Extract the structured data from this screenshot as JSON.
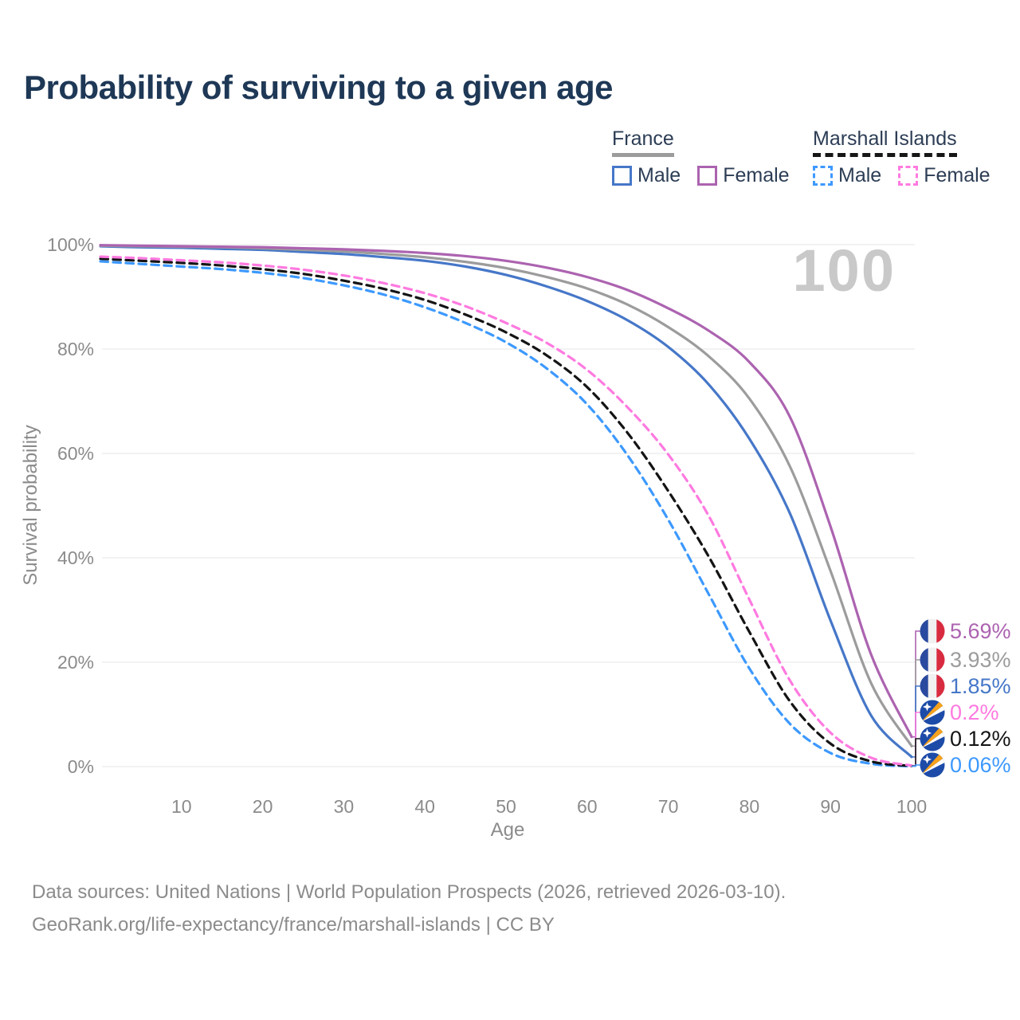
{
  "title": "Probability of surviving to a given age",
  "legend": {
    "groups": [
      {
        "label": "France",
        "line": "solid",
        "items": [
          {
            "label": "Male",
            "color": "#4677c8"
          },
          {
            "label": "Female",
            "color": "#ac63b0"
          }
        ]
      },
      {
        "label": "Marshall Islands",
        "line": "dashed",
        "items": [
          {
            "label": "Male",
            "color": "#3d99ff"
          },
          {
            "label": "Female",
            "color": "#ff7ae0"
          }
        ]
      }
    ]
  },
  "chart_data": {
    "type": "line",
    "x_label": "Age",
    "y_label": "Survival probability",
    "watermark": "100",
    "xlim": [
      0,
      100
    ],
    "ylim": [
      0,
      100
    ],
    "grid": true,
    "x_ticks": [
      10,
      20,
      30,
      40,
      50,
      60,
      70,
      80,
      90,
      100
    ],
    "y_ticks": [
      {
        "value": 0,
        "label": "0%"
      },
      {
        "value": 20,
        "label": "20%"
      },
      {
        "value": 40,
        "label": "40%"
      },
      {
        "value": 60,
        "label": "60%"
      },
      {
        "value": 80,
        "label": "80%"
      },
      {
        "value": 100,
        "label": "100%"
      }
    ],
    "ages": [
      0,
      5,
      10,
      15,
      20,
      25,
      30,
      35,
      40,
      45,
      50,
      55,
      60,
      65,
      70,
      75,
      80,
      85,
      90,
      95,
      100
    ],
    "series": [
      {
        "id": "france-female",
        "country": "France",
        "sex": "Female",
        "line": "solid",
        "color": "#ac63b0",
        "flag": "france",
        "end_label": "5.69%",
        "end_value": 5.69,
        "values": [
          99.9,
          99.8,
          99.7,
          99.6,
          99.5,
          99.3,
          99.1,
          98.8,
          98.4,
          97.8,
          96.9,
          95.6,
          93.8,
          91.3,
          87.8,
          83.5,
          77.5,
          67.0,
          46.0,
          21.5,
          5.69
        ]
      },
      {
        "id": "france-total",
        "country": "France",
        "sex": "Total",
        "line": "solid",
        "color": "#9c9c9c",
        "flag": "france",
        "end_label": "3.93%",
        "end_value": 3.93,
        "values": [
          99.8,
          99.7,
          99.6,
          99.5,
          99.3,
          99.0,
          98.7,
          98.2,
          97.6,
          96.7,
          95.5,
          93.8,
          91.6,
          88.5,
          84.2,
          78.6,
          70.5,
          57.5,
          37.5,
          16.0,
          3.93
        ]
      },
      {
        "id": "france-male",
        "country": "France",
        "sex": "Male",
        "line": "solid",
        "color": "#4677c8",
        "flag": "france",
        "end_label": "1.85%",
        "end_value": 1.85,
        "values": [
          99.7,
          99.5,
          99.4,
          99.2,
          99.0,
          98.6,
          98.2,
          97.6,
          96.9,
          95.8,
          94.2,
          92.0,
          89.2,
          85.5,
          80.4,
          73.2,
          62.8,
          48.5,
          28.0,
          9.8,
          1.85
        ]
      },
      {
        "id": "marshall-islands-female",
        "country": "Marshall Islands",
        "sex": "Female",
        "line": "dashed",
        "color": "#ff7ae0",
        "flag": "marshall-islands",
        "end_label": "0.2%",
        "end_value": 0.2,
        "values": [
          97.7,
          97.4,
          97.0,
          96.6,
          96.0,
          95.2,
          94.1,
          92.6,
          90.7,
          88.2,
          85.0,
          81.2,
          76.0,
          68.8,
          59.8,
          48.0,
          32.0,
          16.5,
          6.5,
          1.7,
          0.2
        ]
      },
      {
        "id": "marshall-islands-total",
        "country": "Marshall Islands",
        "sex": "Total",
        "line": "dashed",
        "color": "#141414",
        "flag": "marshall-islands",
        "end_label": "0.12%",
        "end_value": 0.12,
        "values": [
          97.3,
          96.9,
          96.5,
          96.0,
          95.3,
          94.4,
          93.1,
          91.5,
          89.4,
          86.6,
          83.2,
          78.8,
          72.7,
          63.9,
          52.8,
          40.2,
          25.8,
          12.5,
          4.4,
          1.0,
          0.12
        ]
      },
      {
        "id": "marshall-islands-male",
        "country": "Marshall Islands",
        "sex": "Male",
        "line": "dashed",
        "color": "#3d99ff",
        "flag": "marshall-islands",
        "end_label": "0.06%",
        "end_value": 0.06,
        "values": [
          96.8,
          96.3,
          95.8,
          95.3,
          94.6,
          93.6,
          92.2,
          90.4,
          88.0,
          85.0,
          81.3,
          76.3,
          69.4,
          59.6,
          47.3,
          33.0,
          18.8,
          8.2,
          2.6,
          0.55,
          0.06
        ]
      }
    ],
    "flag_colors": {
      "france_blue": "#2a4a9f",
      "france_white": "#f1f1f1",
      "france_red": "#d92b3f",
      "marshall_blue": "#1d4ba8",
      "marshall_orange": "#f6a21d",
      "marshall_white": "#ffffff"
    }
  },
  "footer": {
    "line1": "Data sources: United Nations | World Population Prospects (2026, retrieved 2026-03-10).",
    "line2": "GeoRank.org/life-expectancy/france/marshall-islands | CC BY"
  }
}
